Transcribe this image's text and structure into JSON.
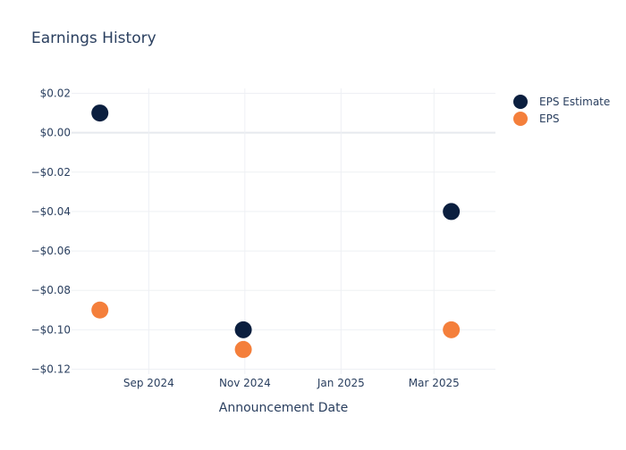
{
  "chart_data": {
    "type": "scatter",
    "title": "Earnings History",
    "xlabel": "Announcement Date",
    "ylabel": "",
    "x": [
      "2024-08-01",
      "2024-10-31",
      "2025-03-12"
    ],
    "series": [
      {
        "name": "EPS Estimate",
        "color": "#0b1f3f",
        "values": [
          0.01,
          -0.1,
          -0.04
        ]
      },
      {
        "name": "EPS",
        "color": "#f47f3b",
        "values": [
          -0.09,
          -0.11,
          -0.1
        ]
      }
    ],
    "xlim": [
      "2024-07-14",
      "2025-04-09"
    ],
    "ylim": [
      -0.1225,
      0.0225
    ],
    "xticks": [
      {
        "date": "2024-09-01",
        "label": "Sep 2024"
      },
      {
        "date": "2024-11-01",
        "label": "Nov 2024"
      },
      {
        "date": "2025-01-01",
        "label": "Jan 2025"
      },
      {
        "date": "2025-03-01",
        "label": "Mar 2025"
      }
    ],
    "yticks": [
      {
        "value": 0.02,
        "label": "$0.02"
      },
      {
        "value": 0.0,
        "label": "$0.00"
      },
      {
        "value": -0.02,
        "label": "−$0.02"
      },
      {
        "value": -0.04,
        "label": "−$0.04"
      },
      {
        "value": -0.06,
        "label": "−$0.06"
      },
      {
        "value": -0.08,
        "label": "−$0.08"
      },
      {
        "value": -0.1,
        "label": "−$0.10"
      },
      {
        "value": -0.12,
        "label": "−$0.12"
      }
    ],
    "grid": true,
    "legend_position": "top-right"
  }
}
